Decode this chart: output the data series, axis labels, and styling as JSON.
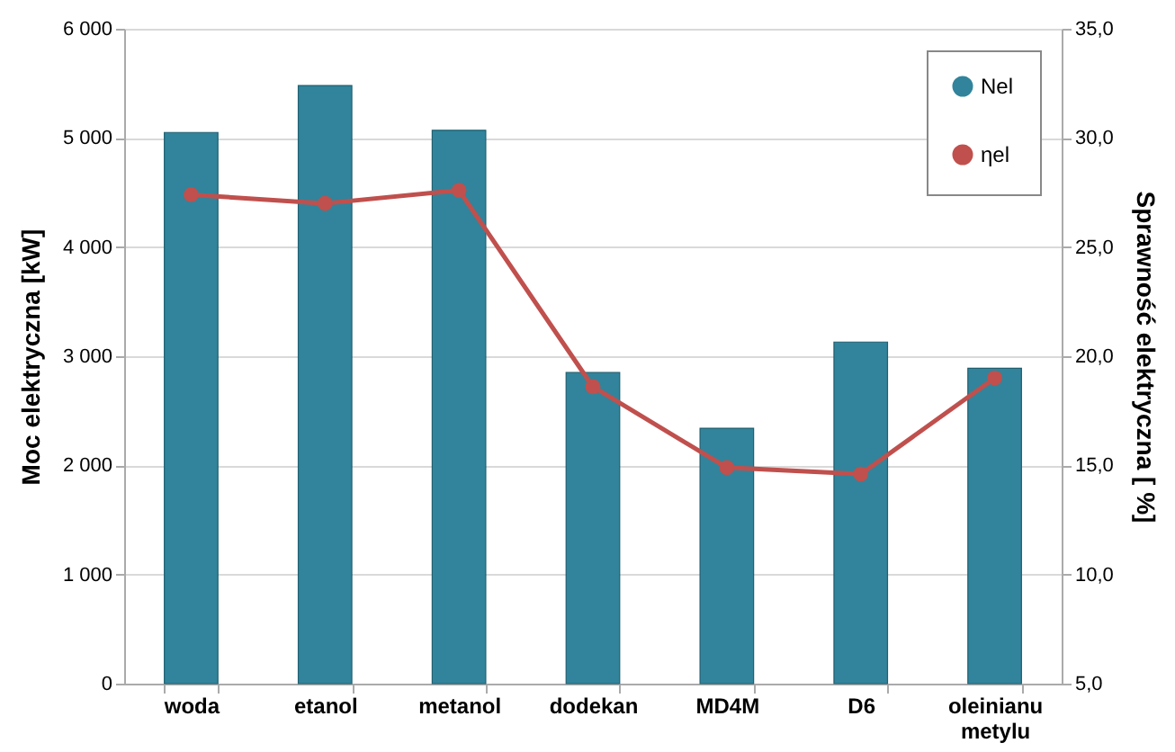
{
  "chart_data": {
    "type": "bar",
    "ylabel": "Moc elektryczna [kW]",
    "y2label": "Sprawność elektryczna [ %]",
    "categories": [
      "woda",
      "etanol",
      "metanol",
      "dodekan",
      "MD4M",
      "D6",
      "oleinianu metylu"
    ],
    "series": [
      {
        "name": "Nel",
        "color": "#31849b",
        "values": [
          5050,
          5480,
          5070,
          2850,
          2340,
          3130,
          2890
        ]
      },
      {
        "name": "ηel",
        "type": "line",
        "axis": "y2",
        "color": "#c0504d",
        "values": [
          27.4,
          27.0,
          27.6,
          18.6,
          14.9,
          14.6,
          19.0
        ]
      }
    ],
    "ylim": [
      0,
      6000
    ],
    "yticks": [
      0,
      {
        "value": 1000,
        "label": "1 000"
      },
      {
        "value": 2000,
        "label": "2 000"
      },
      {
        "value": 3000,
        "label": "3 000"
      },
      {
        "value": 4000,
        "label": "4 000"
      },
      {
        "value": 5000,
        "label": "5 000"
      },
      {
        "value": 6000,
        "label": "6 000"
      }
    ],
    "y2lim": [
      5,
      35
    ],
    "y2ticks": [
      {
        "value": 5,
        "label": "5,0"
      },
      {
        "value": 10,
        "label": "10,0"
      },
      {
        "value": 15,
        "label": "15,0"
      },
      {
        "value": 20,
        "label": "20,0"
      },
      {
        "value": 25,
        "label": "25,0"
      },
      {
        "value": 30,
        "label": "30,0"
      },
      {
        "value": 35,
        "label": "35,0"
      }
    ],
    "grid": "y",
    "legend": "top right",
    "marker": "circle",
    "line_style": "solid"
  }
}
